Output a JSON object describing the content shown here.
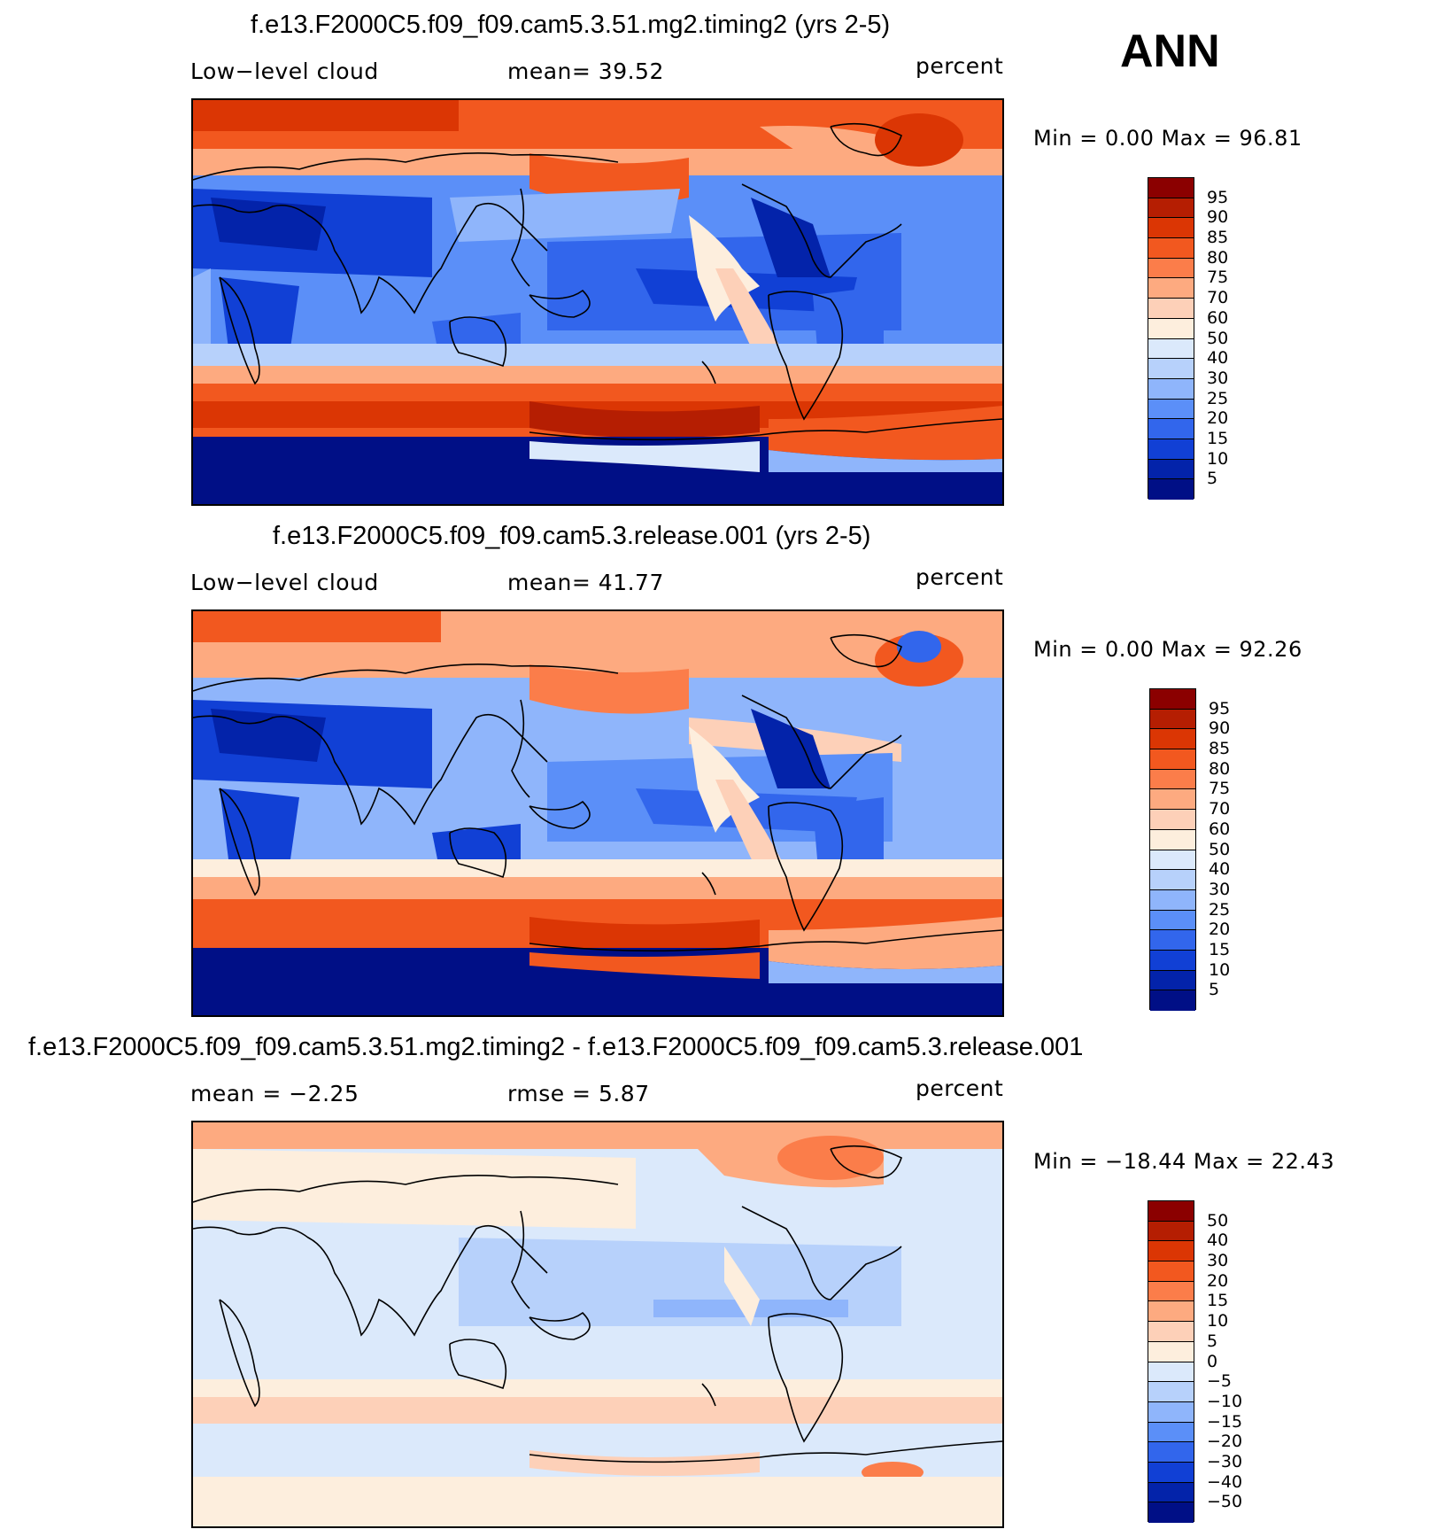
{
  "season": "ANN",
  "colormaps": {
    "cloud": [
      "#8b0000",
      "#b51e02",
      "#db3604",
      "#f2581f",
      "#fb7d4a",
      "#fdaa80",
      "#fdd0b8",
      "#fdeedd",
      "#dbe9fb",
      "#b7d1fb",
      "#8fb5fb",
      "#5b8ff8",
      "#3266ec",
      "#1140d5",
      "#0323aa",
      "#000f86"
    ],
    "diff": [
      "#8b0000",
      "#b51e02",
      "#db3604",
      "#f2581f",
      "#fb7d4a",
      "#fdaa80",
      "#fdd0b8",
      "#fdeedd",
      "#dbe9fb",
      "#b7d1fb",
      "#8fb5fb",
      "#5b8ff8",
      "#3266ec",
      "#1140d5",
      "#0323aa",
      "#000f86"
    ]
  },
  "panels": [
    {
      "title": "f.e13.F2000C5.f09_f09.cam5.3.51.mg2.timing2 (yrs 2-5)",
      "left_label": "Low−level cloud",
      "mid_label": "mean=   39.52",
      "units": "percent",
      "min_max": "Min =    0.00 Max =   96.81",
      "colormap": "cloud",
      "levels": [
        "95",
        "90",
        "85",
        "80",
        "75",
        "70",
        "60",
        "50",
        "40",
        "30",
        "25",
        "20",
        "15",
        "10",
        "5"
      ]
    },
    {
      "title": "f.e13.F2000C5.f09_f09.cam5.3.release.001 (yrs 2-5)",
      "left_label": "Low−level cloud",
      "mid_label": "mean=   41.77",
      "units": "percent",
      "min_max": "Min =    0.00 Max =   92.26",
      "colormap": "cloud",
      "levels": [
        "95",
        "90",
        "85",
        "80",
        "75",
        "70",
        "60",
        "50",
        "40",
        "30",
        "25",
        "20",
        "15",
        "10",
        "5"
      ]
    },
    {
      "title": "f.e13.F2000C5.f09_f09.cam5.3.51.mg2.timing2 - f.e13.F2000C5.f09_f09.cam5.3.release.001",
      "left_label": "mean =   −2.25",
      "mid_label": "rmse =    5.87",
      "units": "percent",
      "min_max": "Min = −18.44 Max =   22.43",
      "colormap": "diff",
      "levels": [
        "50",
        "40",
        "30",
        "20",
        "15",
        "10",
        "5",
        "0",
        "−5",
        "−10",
        "−15",
        "−20",
        "−30",
        "−40",
        "−50"
      ]
    }
  ]
}
